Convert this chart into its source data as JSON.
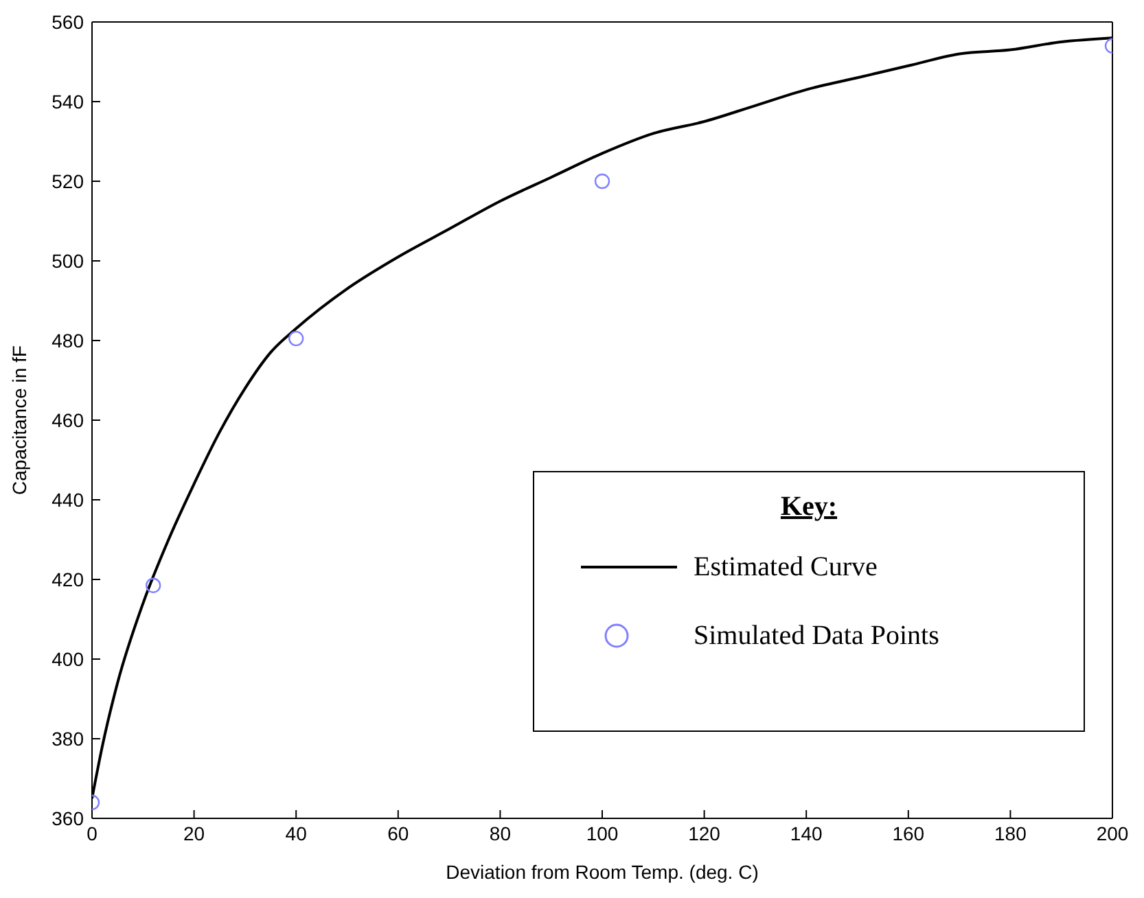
{
  "chart_data": {
    "type": "line",
    "xlabel": "Deviation from Room Temp. (deg. C)",
    "ylabel": "Capacitance in fF",
    "legend_title": "Key:",
    "legend": "bottom right",
    "grid": false,
    "xlim": [
      0,
      200
    ],
    "xticks": [
      0,
      20,
      40,
      60,
      80,
      100,
      120,
      140,
      160,
      180,
      200
    ],
    "ylim": [
      360,
      560
    ],
    "yticks": [
      360,
      380,
      400,
      420,
      440,
      460,
      480,
      500,
      520,
      540,
      560
    ],
    "series": [
      {
        "name": "Estimated Curve",
        "type": "line",
        "color": "#000000",
        "marker": "none",
        "line_style": "solid",
        "x": [
          0,
          2,
          5,
          10,
          15,
          20,
          25,
          30,
          35,
          40,
          50,
          60,
          70,
          80,
          90,
          100,
          110,
          120,
          130,
          140,
          150,
          160,
          170,
          180,
          190,
          200
        ],
        "values": [
          365,
          378,
          394,
          414,
          430,
          444,
          457,
          468,
          477,
          483,
          493,
          501,
          508,
          515,
          521,
          527,
          532,
          535,
          539,
          543,
          546,
          549,
          552,
          553,
          555,
          556
        ]
      },
      {
        "name": "Simulated Data Points",
        "type": "scatter",
        "color": "#8080ff",
        "marker": "circle",
        "x": [
          0,
          12,
          40,
          100,
          200
        ],
        "values": [
          364,
          418.5,
          480.5,
          520,
          554
        ]
      }
    ]
  }
}
